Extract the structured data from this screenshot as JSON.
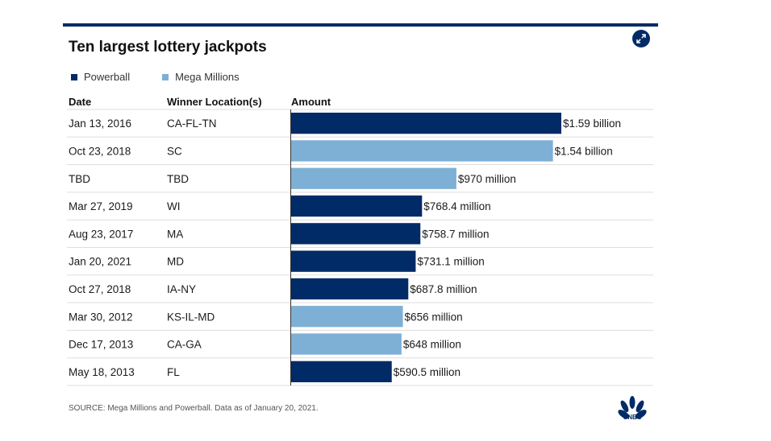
{
  "title": "Ten largest lottery jackpots",
  "legend": [
    {
      "label": "Powerball",
      "color": "#002b66"
    },
    {
      "label": "Mega Millions",
      "color": "#7eb0d5"
    }
  ],
  "headers": {
    "date": "Date",
    "location": "Winner Location(s)",
    "amount": "Amount"
  },
  "chart_data": {
    "type": "bar",
    "orientation": "horizontal",
    "value_unit": "million USD",
    "rows": [
      {
        "date": "Jan 13, 2016",
        "location": "CA-FL-TN",
        "value": 1586,
        "label": "$1.59 billion",
        "game": "Powerball"
      },
      {
        "date": "Oct 23, 2018",
        "location": "SC",
        "value": 1537,
        "label": "$1.54 billion",
        "game": "Mega Millions"
      },
      {
        "date": "TBD",
        "location": "TBD",
        "value": 970,
        "label": "$970 million",
        "game": "Mega Millions"
      },
      {
        "date": "Mar 27, 2019",
        "location": "WI",
        "value": 768.4,
        "label": "$768.4 million",
        "game": "Powerball"
      },
      {
        "date": "Aug 23, 2017",
        "location": "MA",
        "value": 758.7,
        "label": "$758.7 million",
        "game": "Powerball"
      },
      {
        "date": "Jan 20, 2021",
        "location": "MD",
        "value": 731.1,
        "label": "$731.1 million",
        "game": "Powerball"
      },
      {
        "date": "Oct 27, 2018",
        "location": "IA-NY",
        "value": 687.8,
        "label": "$687.8 million",
        "game": "Powerball"
      },
      {
        "date": "Mar 30, 2012",
        "location": "KS-IL-MD",
        "value": 656,
        "label": "$656 million",
        "game": "Mega Millions"
      },
      {
        "date": "Dec 17, 2013",
        "location": "CA-GA",
        "value": 648,
        "label": "$648 million",
        "game": "Mega Millions"
      },
      {
        "date": "May 18, 2013",
        "location": "FL",
        "value": 590.5,
        "label": "$590.5 million",
        "game": "Powerball"
      }
    ]
  },
  "source": "SOURCE: Mega Millions and Powerball. Data as of January 20, 2021.",
  "logo_text": "CNBC",
  "colors": {
    "accent": "#002b66",
    "row_line": "#dddddd"
  },
  "icons": {
    "expand": "expand-arrows-icon",
    "logo": "cnbc-peacock-icon"
  }
}
